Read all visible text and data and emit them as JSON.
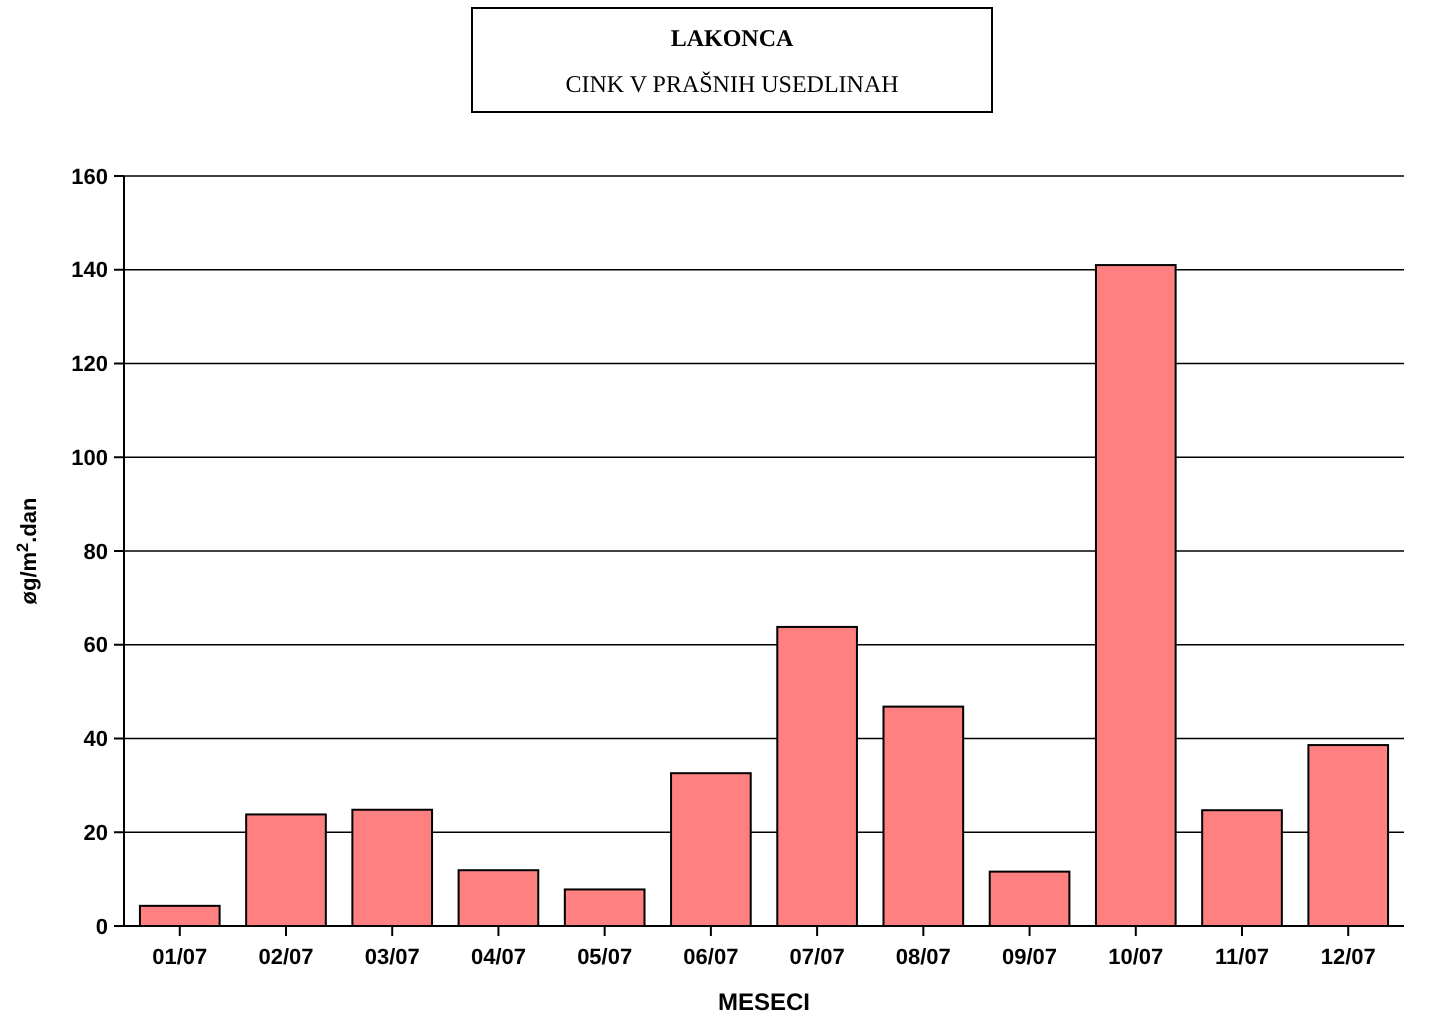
{
  "chart_data": {
    "type": "bar",
    "title": "LAKONCA",
    "subtitle": "CINK V PRAŠNIH USEDLINAH",
    "xlabel": "MESECI",
    "ylabel": "øg/m$^{2}$.dan",
    "categories": [
      "01/07",
      "02/07",
      "03/07",
      "04/07",
      "05/07",
      "06/07",
      "07/07",
      "08/07",
      "09/07",
      "10/07",
      "11/07",
      "12/07"
    ],
    "values": [
      4.3,
      23.8,
      24.8,
      11.9,
      7.8,
      32.6,
      63.8,
      46.8,
      11.6,
      141,
      24.7,
      38.6
    ],
    "color": "#ff8080",
    "ylim": [
      0,
      160
    ],
    "yticks": [
      0,
      20,
      40,
      60,
      80,
      100,
      120,
      140,
      160
    ],
    "grid": "y"
  }
}
